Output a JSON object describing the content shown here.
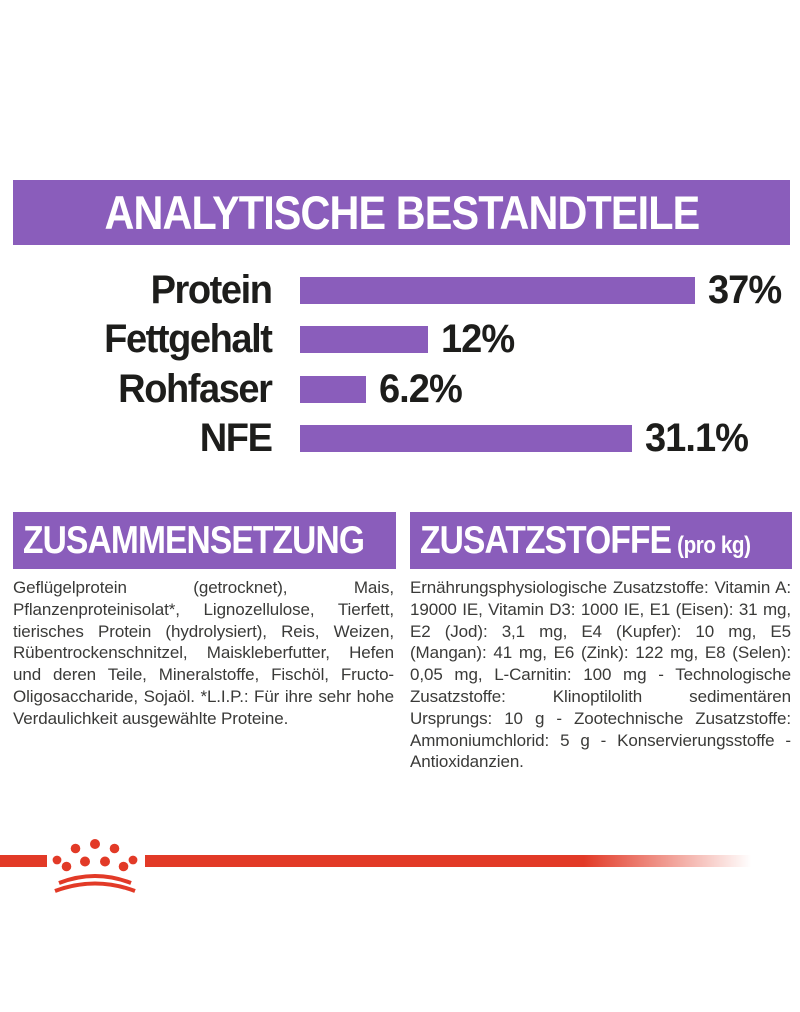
{
  "header": {
    "title": "ANALYTISCHE BESTANDTEILE"
  },
  "chart_data": {
    "type": "bar",
    "orientation": "horizontal",
    "title": "ANALYTISCHE BESTANDTEILE",
    "categories": [
      "Protein",
      "Fettgehalt",
      "Rohfaser",
      "NFE"
    ],
    "values": [
      37,
      12,
      6.2,
      31.1
    ],
    "value_labels": [
      "37%",
      "12%",
      "6.2%",
      "31.1%"
    ],
    "unit": "%",
    "xlim": [
      0,
      37
    ],
    "grid": false,
    "bar_color": "#8A5DBB",
    "label_color": "#1d1d1b"
  },
  "composition": {
    "title": "ZUSAMMENSETZUNG",
    "body": "Geflügelprotein (getrocknet), Mais, Pflanzenproteinisolat*, Lignozellulose, Tierfett, tierisches Protein (hydrolysiert), Reis, Weizen, Rübentrockenschnitzel, Maiskleberfutter, Hefen und deren Teile, Mineralstoffe, Fischöl, Fructo-Oligosaccharide, Sojaöl. *L.I.P.: Für ihre sehr hohe Verdaulichkeit ausgewählte Proteine."
  },
  "additives": {
    "title": "ZUSATZSTOFFE",
    "title_suffix": "(pro kg)",
    "body": "Ernährungsphysiologische Zusatzstoffe: Vitamin A: 19000 IE, Vitamin D3: 1000 IE, E1 (Eisen): 31 mg, E2 (Jod): 3,1 mg, E4 (Kupfer): 10 mg, E5 (Mangan): 41 mg, E6 (Zink): 122 mg, E8 (Selen): 0,05 mg, L-Carnitin: 100 mg - Technologische Zusatzstoffe: Klinoptilolith sedimentären Ursprungs: 10 g - Zootechnische Zusatzstoffe: Ammoniumchlorid: 5 g - Konservierungsstoffe - Antioxidanzien."
  },
  "colors": {
    "purple": "#8A5DBB",
    "red": "#E23A27",
    "heading_text": "#ffffff",
    "chart_text": "#1d1d1b",
    "body_text": "#3a3a38"
  },
  "footer": {
    "brand_icon": "royal-canin-crown"
  }
}
